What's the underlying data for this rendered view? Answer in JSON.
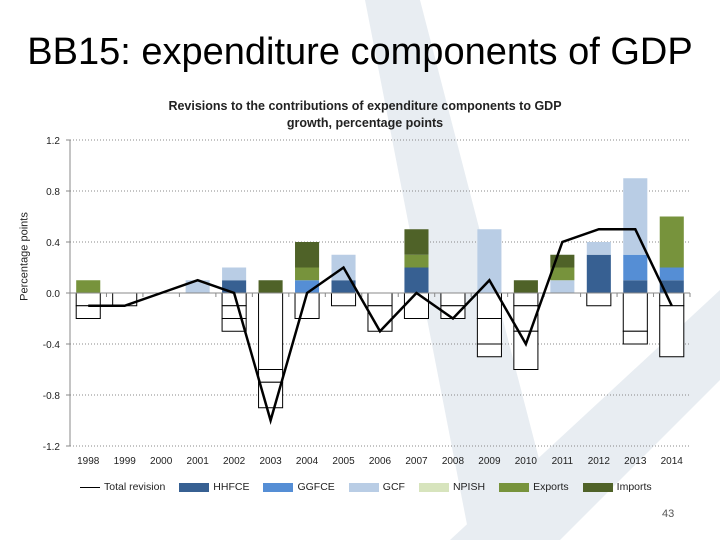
{
  "slide": {
    "title": "BB15: expenditure components of GDP",
    "page_number": "43"
  },
  "chart_data": {
    "type": "bar",
    "stacked": true,
    "title": "Revisions to the contributions of expenditure components to GDP growth, percentage points",
    "xlabel": "",
    "ylabel": "Percentage points",
    "ylim": [
      -1.2,
      1.2
    ],
    "yticks": [
      "1.2",
      "0.8",
      "0.4",
      "0.0",
      "-0.4",
      "-0.8",
      "-1.2"
    ],
    "ytick_values": [
      1.2,
      0.8,
      0.4,
      0.0,
      -0.4,
      -0.8,
      -1.2
    ],
    "grid": true,
    "legend": "bottom",
    "negative_fill": "#ffffff",
    "categories": [
      "1998",
      "1999",
      "2000",
      "2001",
      "2002",
      "2003",
      "2004",
      "2005",
      "2006",
      "2007",
      "2008",
      "2009",
      "2010",
      "2011",
      "2012",
      "2013",
      "2014"
    ],
    "series": [
      {
        "name": "HHFCE",
        "color": "#376092",
        "values": [
          -0.1,
          -0.1,
          0,
          0,
          0.1,
          -0.6,
          0,
          0.1,
          -0.1,
          0.2,
          -0.1,
          -0.2,
          -0.1,
          0,
          0.3,
          0.1,
          0.1
        ]
      },
      {
        "name": "GGFCE",
        "color": "#558ED5",
        "values": [
          0,
          0,
          0,
          0,
          -0.1,
          -0.1,
          0.1,
          0,
          0,
          0,
          0,
          -0.2,
          -0.2,
          0,
          0,
          0.2,
          0.1
        ]
      },
      {
        "name": "GCF",
        "color": "#B9CDE5",
        "values": [
          0,
          0,
          0,
          0.1,
          0.1,
          0,
          -0.2,
          0.2,
          -0.2,
          -0.2,
          -0.1,
          0.5,
          -0.3,
          0.1,
          0.1,
          0.6,
          -0.1
        ]
      },
      {
        "name": "NPISH",
        "color": "#D7E4BD",
        "values": [
          0,
          0,
          0,
          0,
          -0.1,
          -0.2,
          0,
          -0.1,
          0,
          0,
          0,
          -0.1,
          0,
          0,
          -0.1,
          -0.3,
          -0.4
        ]
      },
      {
        "name": "Exports",
        "color": "#77933C",
        "values": [
          0.1,
          0,
          0,
          0,
          0,
          0,
          0.1,
          0,
          0,
          0.1,
          0,
          0,
          0,
          0.1,
          0,
          -0.1,
          0.4
        ]
      },
      {
        "name": "Imports",
        "color": "#4F6228",
        "values": [
          -0.1,
          0,
          0,
          0,
          -0.1,
          0.1,
          0.2,
          0,
          0,
          0.2,
          0,
          0,
          0.1,
          0.1,
          0,
          0,
          0
        ]
      }
    ],
    "line_series": {
      "name": "Total revision",
      "color": "#000000",
      "values": [
        -0.1,
        -0.1,
        0.0,
        0.1,
        0.0,
        -1.0,
        0.0,
        0.2,
        -0.3,
        0.0,
        -0.2,
        0.1,
        -0.4,
        0.4,
        0.5,
        0.5,
        -0.1
      ]
    }
  }
}
